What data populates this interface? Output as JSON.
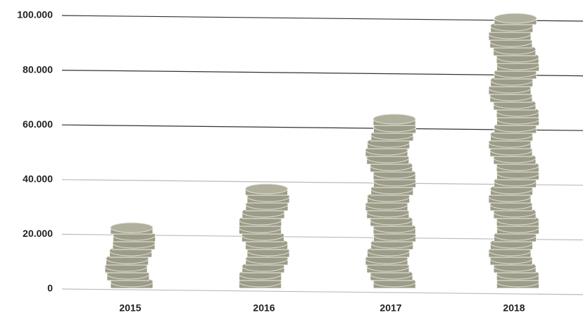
{
  "chart_data": {
    "type": "bar",
    "categories": [
      "2015",
      "2016",
      "2017",
      "2018"
    ],
    "values": [
      24000,
      36000,
      61000,
      98000
    ],
    "color": "#9c9c88",
    "ylim": [
      0,
      100000
    ],
    "yticks": [
      0,
      {
        "value": 20000,
        "label": "20.000"
      },
      {
        "value": 40000,
        "label": "40.000"
      },
      {
        "value": 60000,
        "label": "60.000"
      },
      {
        "value": 80000,
        "label": "80.000"
      },
      {
        "value": 100000,
        "label": "100.000"
      }
    ],
    "grid": true
  }
}
